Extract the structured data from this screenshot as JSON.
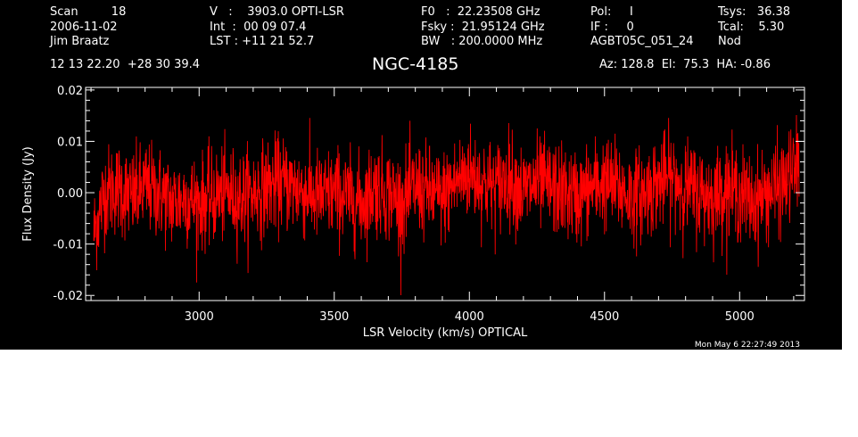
{
  "header": {
    "col1": [
      "Scan         18",
      "2006-11-02",
      "Jim Braatz"
    ],
    "col2": [
      "V   :    3903.0 OPTI-LSR",
      "Int  :  00 09 07.4",
      "LST : +11 21 52.7"
    ],
    "col3": [
      "F0   :  22.23508 GHz",
      "Fsky :  21.95124 GHz",
      "BW   : 200.0000 MHz"
    ],
    "col4": [
      "Pol:     I",
      "IF :     0",
      "AGBT05C_051_24"
    ],
    "col5": [
      "Tsys:   36.38",
      "Tcal:    5.30",
      "Nod"
    ],
    "coords": "12 13 22.20  +28 30 39.4",
    "source": "NGC-4185",
    "azelha": "Az: 128.8  El:  75.3  HA: -0.86",
    "timestamp": "Mon May  6 22:27:49 2013"
  },
  "chart_data": {
    "type": "line",
    "title": "NGC-4185",
    "xlabel": "LSR Velocity (km/s) OPTICAL",
    "ylabel": "Flux Density (Jy)",
    "xlim": [
      2580,
      5240
    ],
    "ylim": [
      -0.021,
      0.0205
    ],
    "xticks": [
      3000,
      3500,
      4000,
      4500,
      5000
    ],
    "yticks": [
      -0.02,
      -0.01,
      0.0,
      0.01,
      0.02
    ],
    "ytick_labels": [
      "-0.02",
      "-0.01",
      "0.00",
      "0.01",
      "0.02"
    ],
    "line_color": "#ff0000",
    "background": "#000000",
    "series": [
      {
        "x": [
          2610,
          2650,
          2700,
          2750,
          2800,
          2850,
          2900,
          2950,
          3000,
          3050,
          3100,
          3150,
          3200,
          3250,
          3300,
          3350,
          3400,
          3450,
          3500,
          3550,
          3600,
          3650,
          3700,
          3750,
          3800,
          3850,
          3900,
          3950,
          4000,
          4050,
          4100,
          4150,
          4200,
          4250,
          4300,
          4350,
          4400,
          4450,
          4500,
          4550,
          4600,
          4650,
          4700,
          4750,
          4800,
          4850,
          4900,
          4950,
          5000,
          5050,
          5100,
          5150,
          5200,
          5220
        ],
        "y": [
          -0.008,
          0.0,
          0.001,
          -0.001,
          0.001,
          0.0,
          -0.002,
          -0.001,
          -0.002,
          -0.001,
          0.0,
          -0.001,
          0.0,
          0.001,
          0.002,
          0.001,
          0.0,
          -0.001,
          0.0,
          -0.001,
          -0.002,
          0.001,
          0.0,
          -0.002,
          0.001,
          0.0,
          -0.001,
          0.002,
          0.004,
          0.002,
          0.001,
          0.003,
          0.0,
          0.002,
          0.001,
          0.0,
          -0.001,
          0.001,
          0.002,
          0.001,
          -0.001,
          0.0,
          0.002,
          0.003,
          0.001,
          0.0,
          -0.001,
          0.001,
          0.0,
          -0.002,
          0.0,
          0.001,
          0.004,
          0.006
        ],
        "noise_rms": 0.0045
      }
    ]
  }
}
